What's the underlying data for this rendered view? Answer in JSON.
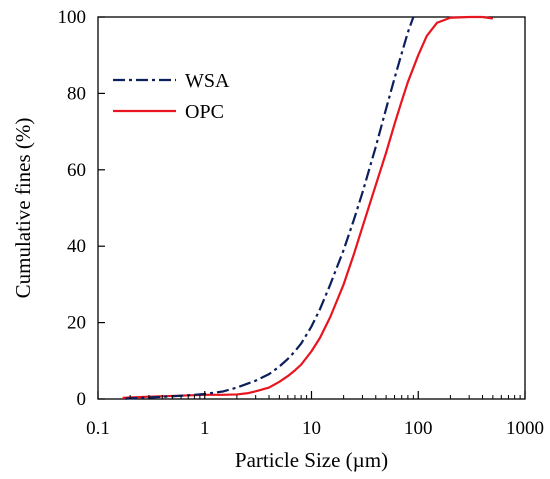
{
  "chart_data": {
    "type": "line",
    "title": "",
    "xlabel": "Particle Size (µm)",
    "ylabel": "Cumulative fines (%)",
    "x_scale": "log",
    "xlim": [
      0.1,
      1000
    ],
    "ylim": [
      0,
      100
    ],
    "x_ticks": [
      0.1,
      1,
      10,
      100,
      1000
    ],
    "x_tick_labels": [
      "0.1",
      "1",
      "10",
      "100",
      "1000"
    ],
    "y_ticks": [
      0,
      20,
      40,
      60,
      80,
      100
    ],
    "y_tick_labels": [
      "0",
      "20",
      "40",
      "60",
      "80",
      "100"
    ],
    "grid": false,
    "legend_position": "top-left",
    "series": [
      {
        "name": "WSA",
        "color": "#0b1f5c",
        "line_style": "dash-dot",
        "points": [
          [
            0.18,
            0.1
          ],
          [
            0.3,
            0.4
          ],
          [
            0.5,
            0.7
          ],
          [
            1,
            1.3
          ],
          [
            1.5,
            2
          ],
          [
            2,
            3
          ],
          [
            3,
            4.8
          ],
          [
            4,
            6.5
          ],
          [
            5,
            8.5
          ],
          [
            6,
            10.5
          ],
          [
            7,
            12.5
          ],
          [
            8,
            14.5
          ],
          [
            10,
            19
          ],
          [
            12,
            23.5
          ],
          [
            15,
            30
          ],
          [
            20,
            39
          ],
          [
            25,
            47
          ],
          [
            30,
            54
          ],
          [
            40,
            66
          ],
          [
            50,
            76
          ],
          [
            60,
            84
          ],
          [
            70,
            90.5
          ],
          [
            80,
            96
          ],
          [
            90,
            100
          ]
        ]
      },
      {
        "name": "OPC",
        "color": "#e8141e",
        "line_style": "solid",
        "points": [
          [
            0.17,
            0.3
          ],
          [
            0.3,
            0.6
          ],
          [
            0.5,
            0.8
          ],
          [
            0.8,
            1
          ],
          [
            1,
            1.1
          ],
          [
            1.5,
            1.1
          ],
          [
            2,
            1.2
          ],
          [
            2.5,
            1.5
          ],
          [
            3,
            2
          ],
          [
            4,
            3
          ],
          [
            5,
            4.5
          ],
          [
            6,
            6
          ],
          [
            7,
            7.5
          ],
          [
            8,
            9
          ],
          [
            10,
            12.5
          ],
          [
            12,
            16
          ],
          [
            15,
            21.5
          ],
          [
            20,
            30
          ],
          [
            25,
            38
          ],
          [
            30,
            45
          ],
          [
            40,
            56
          ],
          [
            50,
            64.5
          ],
          [
            60,
            72
          ],
          [
            70,
            78
          ],
          [
            80,
            83
          ],
          [
            100,
            90
          ],
          [
            120,
            95
          ],
          [
            150,
            98.5
          ],
          [
            200,
            99.8
          ],
          [
            300,
            100
          ],
          [
            400,
            100
          ],
          [
            500,
            99.6
          ]
        ]
      }
    ]
  }
}
